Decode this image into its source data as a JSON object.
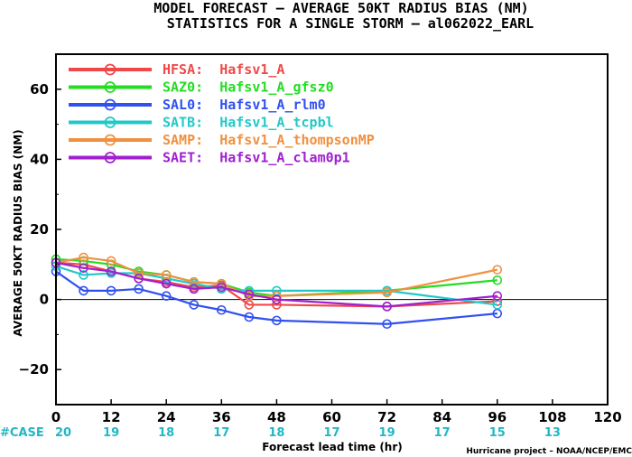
{
  "chart_data": {
    "type": "line",
    "title": "MODEL FORECAST – AVERAGE 50KT RADIUS BIAS (NM)",
    "subtitle": "STATISTICS FOR A SINGLE STORM – al062022_EARL",
    "xlabel": "Forecast lead time (hr)",
    "ylabel": "AVERAGE 50KT RADIUS BIAS (NM)",
    "credit": "Hurricane project – NOAA/NCEP/EMC",
    "xlim": [
      0,
      120
    ],
    "ylim": [
      -30,
      70
    ],
    "x_ticks": [
      0,
      12,
      24,
      36,
      48,
      60,
      72,
      84,
      96,
      108,
      120
    ],
    "x_tick_labels": [
      "0",
      "12",
      "24",
      "36",
      "48",
      "60",
      "72",
      "84",
      "96",
      "108",
      "120"
    ],
    "y_ticks": [
      -20,
      0,
      20,
      40,
      60
    ],
    "y_tick_labels": [
      "−20",
      "0",
      "20",
      "40",
      "60"
    ],
    "zero_line": true,
    "legend_position": "top-left",
    "cases": {
      "prefix": "#CASE",
      "x": [
        0,
        12,
        24,
        36,
        48,
        60,
        72,
        84,
        96,
        108
      ],
      "labels": [
        "20",
        "19",
        "18",
        "17",
        "18",
        "17",
        "19",
        "17",
        "15",
        "13"
      ],
      "color": "#22b7c4"
    },
    "series": [
      {
        "name": "HFSA:  Hafsv1_A",
        "color": "#f04848",
        "x": [
          0,
          6,
          12,
          18,
          24,
          30,
          36,
          42,
          48,
          72,
          96
        ],
        "y": [
          10.5,
          10,
          8,
          6,
          5,
          3.5,
          4,
          -1.5,
          -1.5,
          -2,
          -0.5
        ]
      },
      {
        "name": "SAZ0:  Hafsv1_A_gfsz0",
        "color": "#22dd22",
        "x": [
          0,
          6,
          12,
          18,
          24,
          30,
          36,
          42,
          48,
          72,
          96
        ],
        "y": [
          11.5,
          11,
          10,
          8,
          7,
          5,
          4.5,
          2,
          1,
          2.5,
          5.5
        ]
      },
      {
        "name": "SAL0:  Hafsv1_A_rlm0",
        "color": "#3050f0",
        "x": [
          0,
          6,
          12,
          18,
          24,
          30,
          36,
          42,
          48,
          72,
          96
        ],
        "y": [
          8,
          2.5,
          2.5,
          3,
          1,
          -1.5,
          -3,
          -5,
          -6,
          -7,
          -4
        ]
      },
      {
        "name": "SATB:  Hafsv1_A_tcpbl",
        "color": "#22c8c8",
        "x": [
          0,
          6,
          12,
          18,
          24,
          30,
          36,
          42,
          48,
          72,
          96
        ],
        "y": [
          9.5,
          7,
          7.5,
          7.5,
          6,
          4.5,
          3,
          2.5,
          2.5,
          2.5,
          -1.5
        ]
      },
      {
        "name": "SAMP:  Hafsv1_A_thompsonMP",
        "color": "#f09040",
        "x": [
          0,
          6,
          12,
          18,
          24,
          30,
          36,
          42,
          48,
          72,
          96
        ],
        "y": [
          10.5,
          12,
          11,
          7.5,
          7,
          5,
          4.5,
          1,
          1,
          2,
          8.5
        ]
      },
      {
        "name": "SAET:  Hafsv1_A_clam0p1",
        "color": "#a020d0",
        "x": [
          0,
          6,
          12,
          18,
          24,
          30,
          36,
          42,
          48,
          72,
          96
        ],
        "y": [
          10.5,
          9,
          8,
          6,
          4.5,
          3,
          3.5,
          1.5,
          0,
          -2,
          1
        ]
      }
    ]
  }
}
